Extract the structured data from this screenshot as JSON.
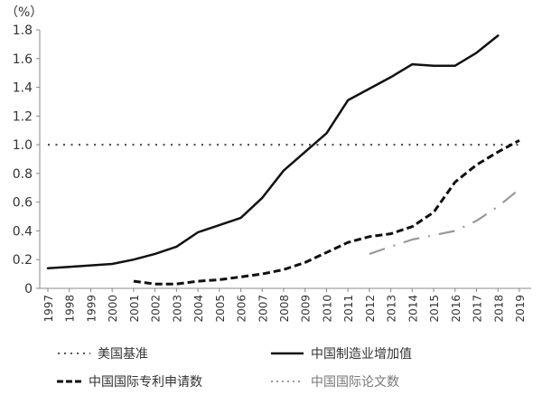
{
  "chart_data": {
    "type": "line",
    "ylabel": "（%）",
    "ylim": [
      0,
      1.8
    ],
    "yticks": [
      "0",
      "0.2",
      "0.4",
      "0.6",
      "0.8",
      "1.0",
      "1.2",
      "1.4",
      "1.6",
      "1.8"
    ],
    "x": [
      "1997",
      "1998",
      "1999",
      "2000",
      "2001",
      "2002",
      "2003",
      "2004",
      "2005",
      "2006",
      "2007",
      "2008",
      "2009",
      "2010",
      "2011",
      "2012",
      "2013",
      "2014",
      "2015",
      "2016",
      "2017",
      "2018",
      "2019"
    ],
    "grid": false,
    "legend_position": "bottom",
    "series": [
      {
        "name": "美国基准",
        "style": "dotted",
        "color": "#555555",
        "values": [
          1,
          1,
          1,
          1,
          1,
          1,
          1,
          1,
          1,
          1,
          1,
          1,
          1,
          1,
          1,
          1,
          1,
          1,
          1,
          1,
          1,
          1,
          1
        ]
      },
      {
        "name": "中国制造业增加值",
        "style": "solid",
        "color": "#111111",
        "values": [
          0.14,
          0.15,
          0.16,
          0.17,
          0.2,
          0.24,
          0.29,
          0.39,
          0.44,
          0.49,
          0.63,
          0.82,
          0.95,
          1.08,
          1.31,
          1.39,
          1.47,
          1.56,
          1.55,
          1.55,
          1.64,
          1.76,
          null
        ]
      },
      {
        "name": "中国国际专利申请数",
        "style": "dashed",
        "color": "#111111",
        "values": [
          null,
          null,
          null,
          null,
          0.05,
          0.03,
          0.03,
          0.05,
          0.06,
          0.08,
          0.1,
          0.13,
          0.18,
          0.25,
          0.32,
          0.36,
          0.38,
          0.43,
          0.53,
          0.74,
          0.86,
          0.95,
          1.03
        ]
      },
      {
        "name": "中国国际论文数",
        "style": "dashdot",
        "color": "#999999",
        "values": [
          null,
          null,
          null,
          null,
          null,
          null,
          null,
          null,
          null,
          null,
          null,
          null,
          null,
          null,
          null,
          0.24,
          0.29,
          0.34,
          0.37,
          0.4,
          0.47,
          0.57,
          0.69
        ]
      }
    ]
  }
}
